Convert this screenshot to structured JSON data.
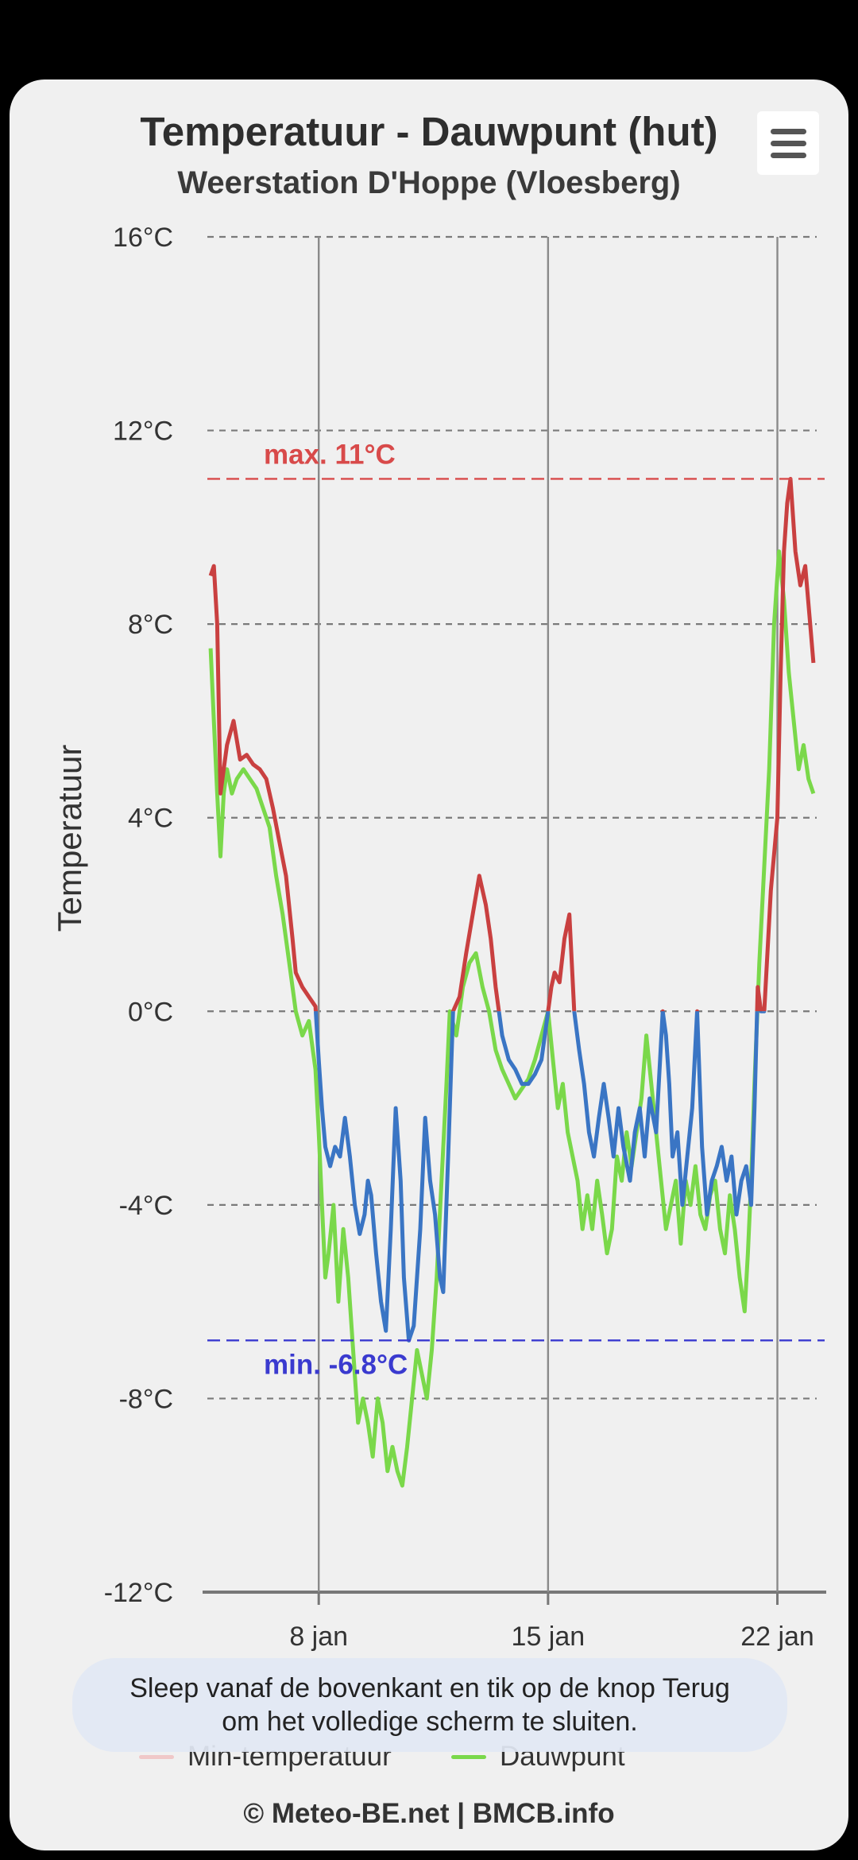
{
  "title": "Temperatuur - Dauwpunt (hut)",
  "subtitle": "Weerstation D'Hoppe (Vloesberg)",
  "menu_icon": "hamburger-menu-icon",
  "toast_line1": "Sleep vanaf de bovenkant en tik op de knop Terug",
  "toast_line2": "om het volledige scherm te sluiten.",
  "credits": "© Meteo-BE.net | BMCB.info",
  "colors": {
    "temperature_above_zero": "#c94040",
    "temperature_below_zero": "#3a75c4",
    "dewpoint": "#7ad84a",
    "min_temperature_legend": "#f0c8c8",
    "max_line": "#d84a4a",
    "min_line": "#3a3acf"
  },
  "chart_data": {
    "type": "line",
    "title": "Temperatuur - Dauwpunt (hut)",
    "subtitle": "Weerstation D'Hoppe (Vloesberg)",
    "ylabel": "Temperatuur",
    "xlabel": "",
    "ylim": [
      -12,
      16
    ],
    "y_ticks": [
      16,
      12,
      8,
      4,
      0,
      -4,
      -8,
      -12
    ],
    "y_tick_labels": [
      "16°C",
      "12°C",
      "8°C",
      "4°C",
      "0°C",
      "-4°C",
      "-8°C",
      "-12°C"
    ],
    "x_unit": "day of January",
    "xlim": [
      4.6,
      23.2
    ],
    "x_ticks": [
      8,
      15,
      22
    ],
    "x_tick_labels": [
      "8 jan",
      "15 jan",
      "22 jan"
    ],
    "grid": true,
    "legend_position": "bottom",
    "legend": [
      "Min-temperatuur",
      "Dauwpunt"
    ],
    "annotations": [
      {
        "label": "max. 11°C",
        "value": 11
      },
      {
        "label": "min. -6.8°C",
        "value": -6.8
      }
    ],
    "series": [
      {
        "name": "Min-temperatuur",
        "x": [
          4.7,
          4.8,
          4.9,
          5.0,
          5.2,
          5.4,
          5.6,
          5.8,
          6.0,
          6.2,
          6.4,
          6.6,
          6.8,
          7.0,
          7.2,
          7.3,
          7.5,
          7.7,
          7.9,
          8.0,
          8.1,
          8.2,
          8.35,
          8.5,
          8.65,
          8.8,
          8.95,
          9.1,
          9.25,
          9.4,
          9.5,
          9.6,
          9.75,
          9.9,
          10.05,
          10.2,
          10.35,
          10.5,
          10.6,
          10.75,
          10.9,
          11.1,
          11.25,
          11.4,
          11.55,
          11.7,
          11.8,
          11.95,
          12.1,
          12.3,
          12.5,
          12.7,
          12.9,
          13.1,
          13.25,
          13.4,
          13.6,
          13.8,
          14.0,
          14.2,
          14.4,
          14.6,
          14.8,
          15.0,
          15.1,
          15.2,
          15.35,
          15.5,
          15.65,
          15.8,
          15.95,
          16.1,
          16.25,
          16.4,
          16.55,
          16.7,
          16.85,
          17.0,
          17.15,
          17.3,
          17.5,
          17.65,
          17.8,
          17.95,
          18.1,
          18.3,
          18.5,
          18.6,
          18.7,
          18.8,
          18.95,
          19.1,
          19.25,
          19.4,
          19.55,
          19.7,
          19.85,
          20.0,
          20.15,
          20.3,
          20.45,
          20.6,
          20.75,
          20.9,
          21.05,
          21.2,
          21.3,
          21.4,
          21.5,
          21.6,
          21.8,
          22.0,
          22.1,
          22.2,
          22.3,
          22.4,
          22.55,
          22.7,
          22.85,
          23.0,
          23.1
        ],
        "y": [
          9.0,
          9.2,
          8.0,
          4.5,
          5.5,
          6.0,
          5.2,
          5.3,
          5.1,
          5.0,
          4.8,
          4.2,
          3.5,
          2.8,
          1.5,
          0.8,
          0.5,
          0.3,
          0.1,
          -1.0,
          -2.0,
          -2.8,
          -3.2,
          -2.8,
          -3.0,
          -2.2,
          -3.0,
          -4.0,
          -4.6,
          -4.2,
          -3.5,
          -3.8,
          -5.0,
          -6.0,
          -6.6,
          -4.5,
          -2.0,
          -3.5,
          -5.5,
          -6.8,
          -6.5,
          -4.5,
          -2.2,
          -3.5,
          -4.2,
          -5.5,
          -5.8,
          -3.0,
          0.0,
          0.3,
          1.2,
          2.0,
          2.8,
          2.2,
          1.5,
          0.5,
          -0.5,
          -1.0,
          -1.2,
          -1.5,
          -1.5,
          -1.3,
          -1.0,
          0.0,
          0.5,
          0.8,
          0.6,
          1.5,
          2.0,
          0.0,
          -0.8,
          -1.5,
          -2.5,
          -3.0,
          -2.2,
          -1.5,
          -2.2,
          -3.0,
          -2.0,
          -2.8,
          -3.5,
          -2.5,
          -2.0,
          -3.0,
          -1.8,
          -2.5,
          0.0,
          -0.5,
          -1.5,
          -3.0,
          -2.5,
          -4.0,
          -3.0,
          -2.0,
          0.0,
          -2.8,
          -4.2,
          -3.5,
          -3.2,
          -2.8,
          -3.5,
          -3.0,
          -4.2,
          -3.5,
          -3.2,
          -4.0,
          -2.0,
          0.5,
          0.0,
          0.0,
          2.5,
          4.0,
          7.0,
          9.5,
          10.5,
          11.0,
          9.5,
          8.8,
          9.2,
          8.0,
          7.2
        ]
      },
      {
        "name": "Dauwpunt",
        "x": [
          4.7,
          4.8,
          4.9,
          5.0,
          5.1,
          5.2,
          5.35,
          5.5,
          5.7,
          5.9,
          6.1,
          6.3,
          6.5,
          6.7,
          6.9,
          7.1,
          7.3,
          7.5,
          7.7,
          7.9,
          8.0,
          8.1,
          8.2,
          8.3,
          8.45,
          8.6,
          8.75,
          8.9,
          9.05,
          9.2,
          9.35,
          9.5,
          9.65,
          9.8,
          9.95,
          10.1,
          10.25,
          10.4,
          10.55,
          10.7,
          10.85,
          11.0,
          11.15,
          11.3,
          11.45,
          11.6,
          11.75,
          11.9,
          12.0,
          12.2,
          12.4,
          12.6,
          12.8,
          13.0,
          13.2,
          13.4,
          13.6,
          13.8,
          14.0,
          14.2,
          14.4,
          14.6,
          14.8,
          15.0,
          15.15,
          15.3,
          15.45,
          15.6,
          15.75,
          15.9,
          16.05,
          16.2,
          16.35,
          16.5,
          16.65,
          16.8,
          16.95,
          17.1,
          17.25,
          17.4,
          17.55,
          17.7,
          17.85,
          18.0,
          18.15,
          18.3,
          18.45,
          18.6,
          18.75,
          18.9,
          19.05,
          19.2,
          19.35,
          19.5,
          19.65,
          19.8,
          19.95,
          20.1,
          20.25,
          20.4,
          20.55,
          20.7,
          20.85,
          21.0,
          21.1,
          21.2,
          21.3,
          21.45,
          21.6,
          21.75,
          21.9,
          22.05,
          22.2,
          22.35,
          22.5,
          22.65,
          22.8,
          22.95,
          23.1
        ],
        "y": [
          7.5,
          6.0,
          4.5,
          3.2,
          4.5,
          5.0,
          4.5,
          4.8,
          5.0,
          4.8,
          4.6,
          4.2,
          3.8,
          2.8,
          2.0,
          1.0,
          0.0,
          -0.5,
          -0.2,
          -1.2,
          -2.5,
          -4.0,
          -5.5,
          -5.0,
          -4.0,
          -6.0,
          -4.5,
          -5.5,
          -7.0,
          -8.5,
          -8.0,
          -8.5,
          -9.2,
          -8.0,
          -8.5,
          -9.5,
          -9.0,
          -9.5,
          -9.8,
          -9.0,
          -8.0,
          -7.0,
          -7.5,
          -8.0,
          -7.0,
          -5.5,
          -3.5,
          -1.5,
          0.0,
          -0.5,
          0.5,
          1.0,
          1.2,
          0.5,
          0.0,
          -0.8,
          -1.2,
          -1.5,
          -1.8,
          -1.6,
          -1.4,
          -1.0,
          -0.5,
          0.0,
          -1.0,
          -2.0,
          -1.5,
          -2.5,
          -3.0,
          -3.5,
          -4.5,
          -3.8,
          -4.5,
          -3.5,
          -4.2,
          -5.0,
          -4.5,
          -3.0,
          -3.5,
          -2.5,
          -3.2,
          -2.5,
          -1.8,
          -0.5,
          -1.5,
          -2.5,
          -3.5,
          -4.5,
          -4.0,
          -3.5,
          -4.8,
          -3.5,
          -4.0,
          -3.2,
          -4.2,
          -4.5,
          -3.8,
          -3.5,
          -4.5,
          -5.0,
          -3.8,
          -4.5,
          -5.5,
          -6.2,
          -5.0,
          -3.5,
          -1.5,
          1.0,
          3.0,
          5.0,
          8.0,
          9.5,
          8.5,
          7.0,
          6.0,
          5.0,
          5.5,
          4.8,
          4.5
        ]
      }
    ]
  }
}
